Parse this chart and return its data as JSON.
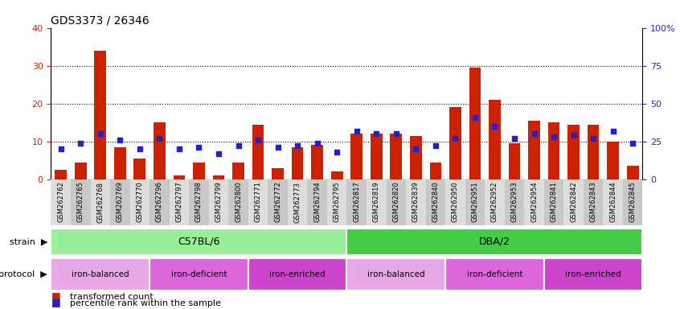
{
  "title": "GDS3373 / 26346",
  "samples": [
    "GSM262762",
    "GSM262765",
    "GSM262768",
    "GSM262769",
    "GSM262770",
    "GSM262796",
    "GSM262797",
    "GSM262798",
    "GSM262799",
    "GSM262800",
    "GSM262771",
    "GSM262772",
    "GSM262773",
    "GSM262794",
    "GSM262795",
    "GSM262817",
    "GSM262819",
    "GSM262820",
    "GSM262839",
    "GSM262840",
    "GSM262950",
    "GSM262951",
    "GSM262952",
    "GSM262953",
    "GSM262954",
    "GSM262841",
    "GSM262842",
    "GSM262843",
    "GSM262844",
    "GSM262845"
  ],
  "red_values": [
    2.5,
    4.5,
    34.0,
    8.5,
    5.5,
    15.0,
    1.0,
    4.5,
    1.0,
    4.5,
    14.5,
    3.0,
    8.5,
    9.0,
    2.0,
    12.0,
    12.0,
    12.0,
    11.5,
    4.5,
    19.0,
    29.5,
    21.0,
    9.5,
    15.5,
    15.0,
    14.5,
    14.5,
    10.0,
    3.5
  ],
  "blue_values_pct": [
    20,
    24,
    30,
    26,
    20,
    27,
    20,
    21,
    17,
    22,
    26,
    21,
    22,
    24,
    18,
    32,
    30,
    30,
    20,
    22,
    27,
    41,
    35,
    27,
    30,
    28,
    29,
    27,
    32,
    24
  ],
  "strain_groups": [
    {
      "label": "C57BL/6",
      "start": 0,
      "end": 15,
      "color": "#99EE99"
    },
    {
      "label": "DBA/2",
      "start": 15,
      "end": 30,
      "color": "#44CC44"
    }
  ],
  "protocol_groups": [
    {
      "label": "iron-balanced",
      "start": 0,
      "end": 5,
      "color": "#E8A8E8"
    },
    {
      "label": "iron-deficient",
      "start": 5,
      "end": 10,
      "color": "#DD66DD"
    },
    {
      "label": "iron-enriched",
      "start": 10,
      "end": 15,
      "color": "#CC44CC"
    },
    {
      "label": "iron-balanced",
      "start": 15,
      "end": 20,
      "color": "#E8A8E8"
    },
    {
      "label": "iron-deficient",
      "start": 20,
      "end": 25,
      "color": "#DD66DD"
    },
    {
      "label": "iron-enriched",
      "start": 25,
      "end": 30,
      "color": "#CC44CC"
    }
  ],
  "red_color": "#CC2200",
  "blue_color": "#2222CC",
  "ylim_left": [
    0,
    40
  ],
  "ylim_right": [
    0,
    100
  ],
  "yticks_left": [
    0,
    10,
    20,
    30,
    40
  ],
  "yticks_right": [
    0,
    25,
    50,
    75,
    100
  ],
  "ytick_labels_right": [
    "0",
    "25",
    "50",
    "75",
    "100%"
  ],
  "grid_values": [
    10,
    20,
    30
  ],
  "bar_width": 0.6,
  "blue_marker_size": 18
}
